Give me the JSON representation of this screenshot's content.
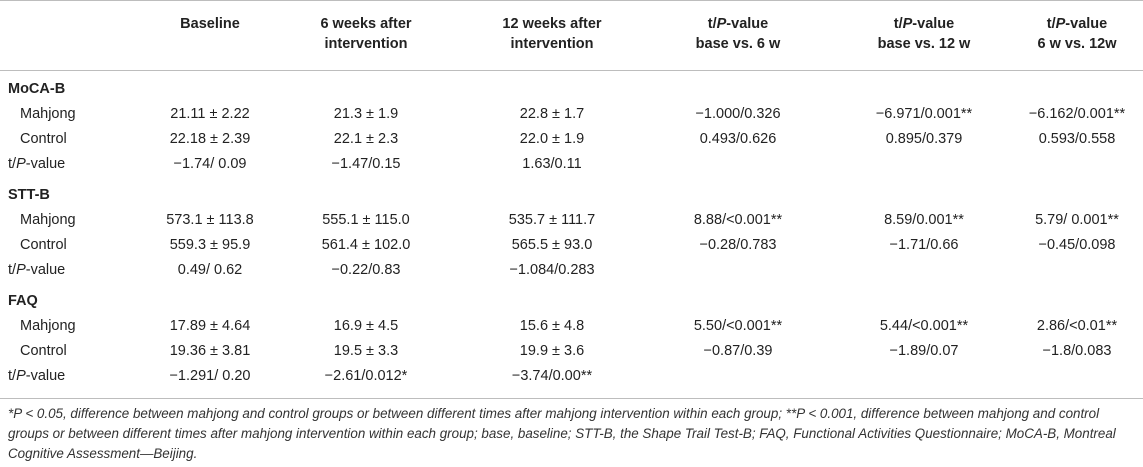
{
  "header": {
    "columns": [
      [
        "Baseline"
      ],
      [
        "6 weeks after",
        "intervention"
      ],
      [
        "12 weeks after",
        "intervention"
      ],
      [
        "t/P-value",
        "base vs. 6 w"
      ],
      [
        "t/P-value",
        "base vs. 12 w"
      ],
      [
        "t/P-value",
        "6 w vs. 12w"
      ]
    ]
  },
  "sections": [
    {
      "title": "MoCA-B",
      "rows": [
        {
          "label": "Mahjong",
          "cells": [
            "21.11 ± 2.22",
            "21.3 ± 1.9",
            "22.8 ± 1.7",
            "−1.000/0.326",
            "−6.971/0.001**",
            "−6.162/0.001**"
          ]
        },
        {
          "label": "Control",
          "cells": [
            "22.18 ± 2.39",
            "22.1 ± 2.3",
            "22.0 ± 1.9",
            "0.493/0.626",
            "0.895/0.379",
            "0.593/0.558"
          ]
        },
        {
          "label": "t/P-value",
          "cells": [
            "−1.74/ 0.09",
            "−1.47/0.15",
            "1.63/0.11",
            "",
            "",
            ""
          ]
        }
      ]
    },
    {
      "title": "STT-B",
      "rows": [
        {
          "label": "Mahjong",
          "cells": [
            "573.1 ± 113.8",
            "555.1 ± 115.0",
            "535.7 ± 111.7",
            "8.88/<0.001**",
            "8.59/0.001**",
            "5.79/ 0.001**"
          ]
        },
        {
          "label": "Control",
          "cells": [
            "559.3 ± 95.9",
            "561.4 ± 102.0",
            "565.5 ± 93.0",
            "−0.28/0.783",
            "−1.71/0.66",
            "−0.45/0.098"
          ]
        },
        {
          "label": "t/P-value",
          "cells": [
            "0.49/ 0.62",
            "−0.22/0.83",
            "−1.084/0.283",
            "",
            "",
            ""
          ]
        }
      ]
    },
    {
      "title": "FAQ",
      "rows": [
        {
          "label": "Mahjong",
          "cells": [
            "17.89 ± 4.64",
            "16.9 ± 4.5",
            "15.6 ± 4.8",
            "5.50/<0.001**",
            "5.44/<0.001**",
            "2.86/<0.01**"
          ]
        },
        {
          "label": "Control",
          "cells": [
            "19.36 ± 3.81",
            "19.5 ± 3.3",
            "19.9 ± 3.6",
            "−0.87/0.39",
            "−1.89/0.07",
            "−1.8/0.083"
          ]
        },
        {
          "label": "t/P-value",
          "cells": [
            "−1.291/ 0.20",
            "−2.61/0.012*",
            "−3.74/0.00**",
            "",
            "",
            ""
          ]
        }
      ]
    }
  ],
  "footnote": "*P < 0.05, difference between mahjong and control groups or between different times after mahjong intervention within each group; **P < 0.001, difference between mahjong and control groups or between different times after mahjong intervention within each group; base, baseline; STT-B, the Shape Trail Test-B; FAQ, Functional Activities Questionnaire; MoCA-B, Montreal Cognitive Assessment—Beijing."
}
